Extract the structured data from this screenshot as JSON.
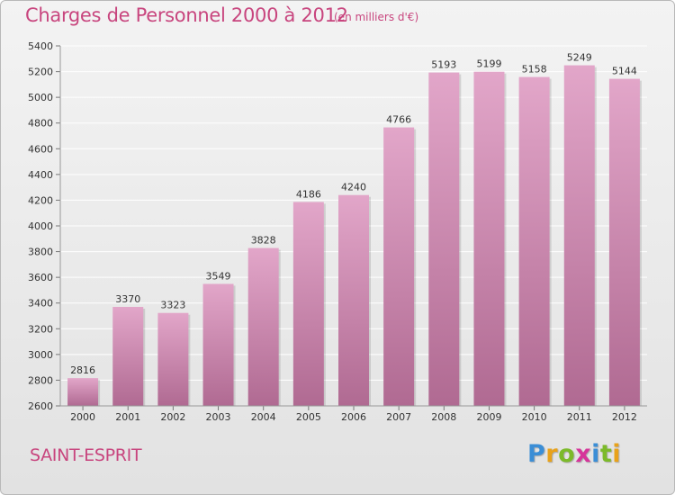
{
  "header": {
    "title": "Charges de Personnel 2000 à 2012",
    "subtitle": "(en milliers d'€)"
  },
  "footer": {
    "commune": "SAINT-ESPRIT",
    "logo": {
      "letters": [
        "P",
        "r",
        "o",
        "x",
        "i",
        "t",
        "i"
      ],
      "colors": [
        "#3b8ed6",
        "#e8a21a",
        "#7cba2a",
        "#d6349a",
        "#3b8ed6",
        "#7cba2a",
        "#e8a21a"
      ]
    }
  },
  "chart_data": {
    "type": "bar",
    "title": "Charges de Personnel 2000 à 2012",
    "subtitle": "(en milliers d'€)",
    "categories": [
      "2000",
      "2001",
      "2002",
      "2003",
      "2004",
      "2005",
      "2006",
      "2007",
      "2008",
      "2009",
      "2010",
      "2011",
      "2012"
    ],
    "values": [
      2816,
      3370,
      3323,
      3549,
      3828,
      4186,
      4240,
      4766,
      5193,
      5199,
      5158,
      5249,
      5144
    ],
    "ylim": [
      2600,
      5400
    ],
    "yticks": [
      2600,
      2800,
      3000,
      3200,
      3400,
      3600,
      3800,
      4000,
      4200,
      4400,
      4600,
      4800,
      5000,
      5200,
      5400
    ],
    "grid": true,
    "legend": "none",
    "colors": {
      "bar_top": "#e2a6c9",
      "bar_bottom": "#b06a92",
      "grid": "#ffffff",
      "label": "#333333"
    }
  }
}
